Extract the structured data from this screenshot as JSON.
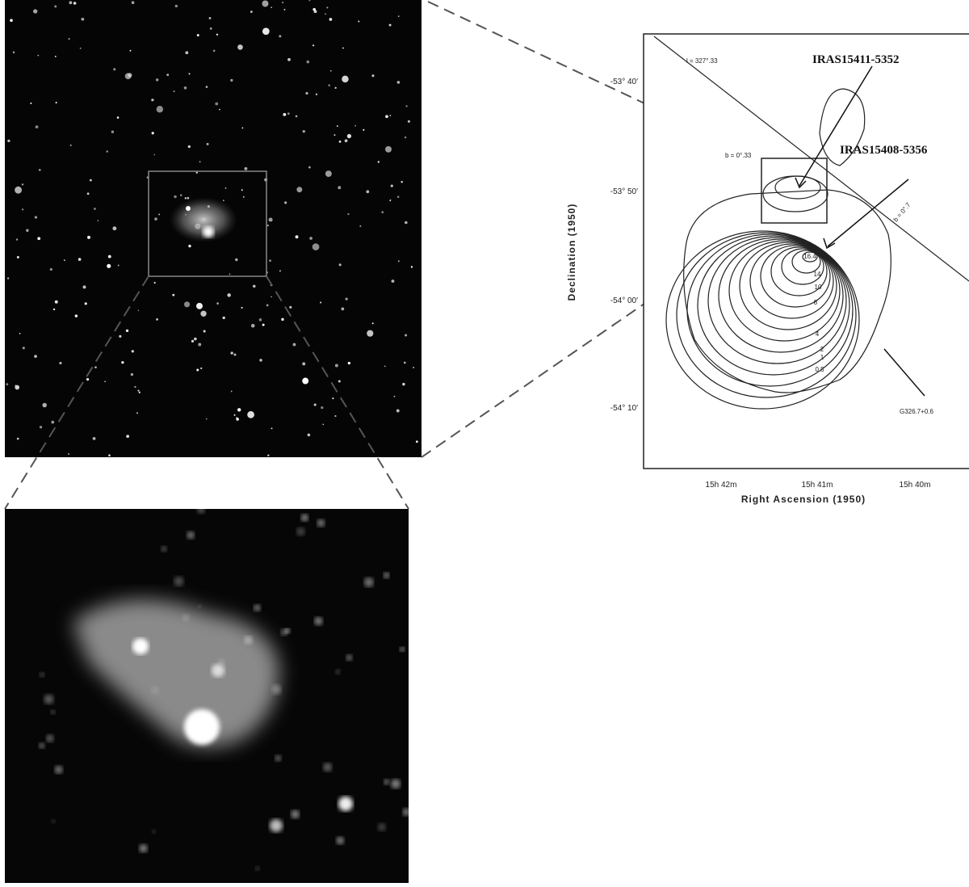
{
  "contour_map": {
    "annotations": [
      "IRAS15411-5352",
      "IRAS15408-5356"
    ],
    "y_label": "Declination (1950)",
    "x_label": "Right Ascension (1950)",
    "yticks": [
      "-53° 40′",
      "-53° 50′",
      "-54° 00′",
      "-54° 10′"
    ],
    "xticks": [
      "15h 42m",
      "15h 41m",
      "15h 40m"
    ],
    "contour_labels": [
      "16.4",
      "14",
      "10",
      "8",
      "4",
      "2",
      "1",
      "0.5"
    ],
    "line_labels": [
      "l = 327°.33",
      "b = 0°.33",
      "b = 0°.7"
    ],
    "source_label": "G326.7+0.6"
  }
}
